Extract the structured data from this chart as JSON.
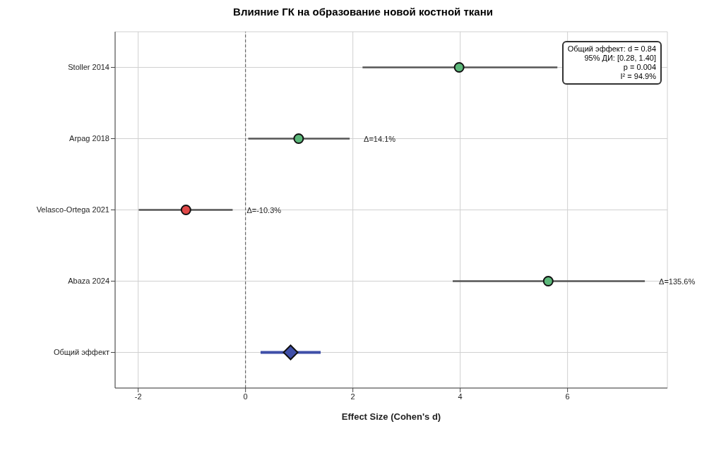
{
  "chart_data": {
    "type": "scatter",
    "orientation": "horizontal",
    "title": "Влияние ГК на образование новой костной ткани",
    "xlabel": "Effect Size (Cohen's d)",
    "categories": [
      "Stoller 2014",
      "Arpag 2018",
      "Velasco-Ortega 2021",
      "Abaza 2024",
      "Общий эффект"
    ],
    "series": [
      {
        "color": "#5cb87a",
        "colors": [
          "#5cb87a",
          "#5cb87a",
          "#e04848",
          "#5cb87a",
          null
        ],
        "values": [
          3.98,
          0.99,
          -1.11,
          5.64,
          null
        ],
        "errors": [
          [
            2.18,
            5.81
          ],
          [
            0.05,
            1.94
          ],
          [
            -1.99,
            -0.24
          ],
          [
            3.86,
            7.44
          ],
          null
        ],
        "marker": "circle"
      },
      {
        "color": "#3f4fa8",
        "values": [
          null,
          null,
          null,
          null,
          0.84
        ],
        "errors": [
          null,
          null,
          null,
          null,
          [
            0.28,
            1.4
          ]
        ],
        "marker": "diamond"
      }
    ],
    "xlim": [
      -2.43,
      7.86
    ],
    "xticks": [
      -2,
      0,
      2,
      4,
      6
    ],
    "ref_lines": [
      {
        "axis": "x",
        "value": 0,
        "line_style": "dashed",
        "color": "#555555"
      }
    ],
    "annotations": [
      {
        "text": "Δ=14.1%",
        "x": 1.94,
        "y": "Arpag 2018"
      },
      {
        "text": "Δ=-10.3%",
        "x": -0.24,
        "y": "Velasco-Ortega 2021"
      },
      {
        "text": "Δ=135.6%",
        "x": 7.44,
        "y": "Abaza 2024"
      },
      "Общий эффект: d = 0.84\n95% ДИ: [0.28, 1.40]\np = 0.004\nI² = 94.9%"
    ],
    "grid": true
  }
}
